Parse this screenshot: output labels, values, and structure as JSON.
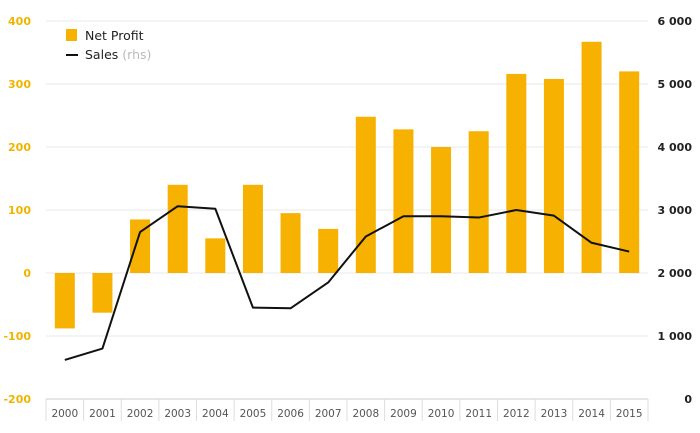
{
  "chart_data": {
    "type": "bar",
    "categories": [
      "2000",
      "2001",
      "2002",
      "2003",
      "2004",
      "2005",
      "2006",
      "2007",
      "2008",
      "2009",
      "2010",
      "2011",
      "2012",
      "2013",
      "2014",
      "2015"
    ],
    "series": [
      {
        "name": "Net Profit",
        "type": "bar",
        "axis": "left",
        "values": [
          -88,
          -63,
          85,
          140,
          55,
          140,
          95,
          70,
          248,
          228,
          200,
          225,
          316,
          308,
          367,
          320
        ]
      },
      {
        "name": "Sales",
        "name_suffix": "(rhs)",
        "type": "line",
        "axis": "right",
        "values": [
          620,
          800,
          2650,
          3060,
          3020,
          1450,
          1440,
          1850,
          2580,
          2900,
          2900,
          2880,
          3000,
          2910,
          2480,
          2340
        ]
      }
    ],
    "y_left": {
      "lim": [
        -200,
        400
      ],
      "ticks": [
        "-200",
        "-100",
        "0",
        "100",
        "200",
        "300",
        "400"
      ]
    },
    "y_right": {
      "lim": [
        0,
        6000
      ],
      "ticks": [
        "0",
        "1 000",
        "2 000",
        "3 000",
        "4 000",
        "5 000",
        "6 000"
      ]
    },
    "title": "",
    "xlabel": "",
    "ylabel": "",
    "grid": true,
    "legend_position": "top-left",
    "colors": {
      "bar": "#f7b100",
      "line": "#111111",
      "left_axis_text": "#f0b400",
      "grid": "#e8e8e8"
    }
  }
}
